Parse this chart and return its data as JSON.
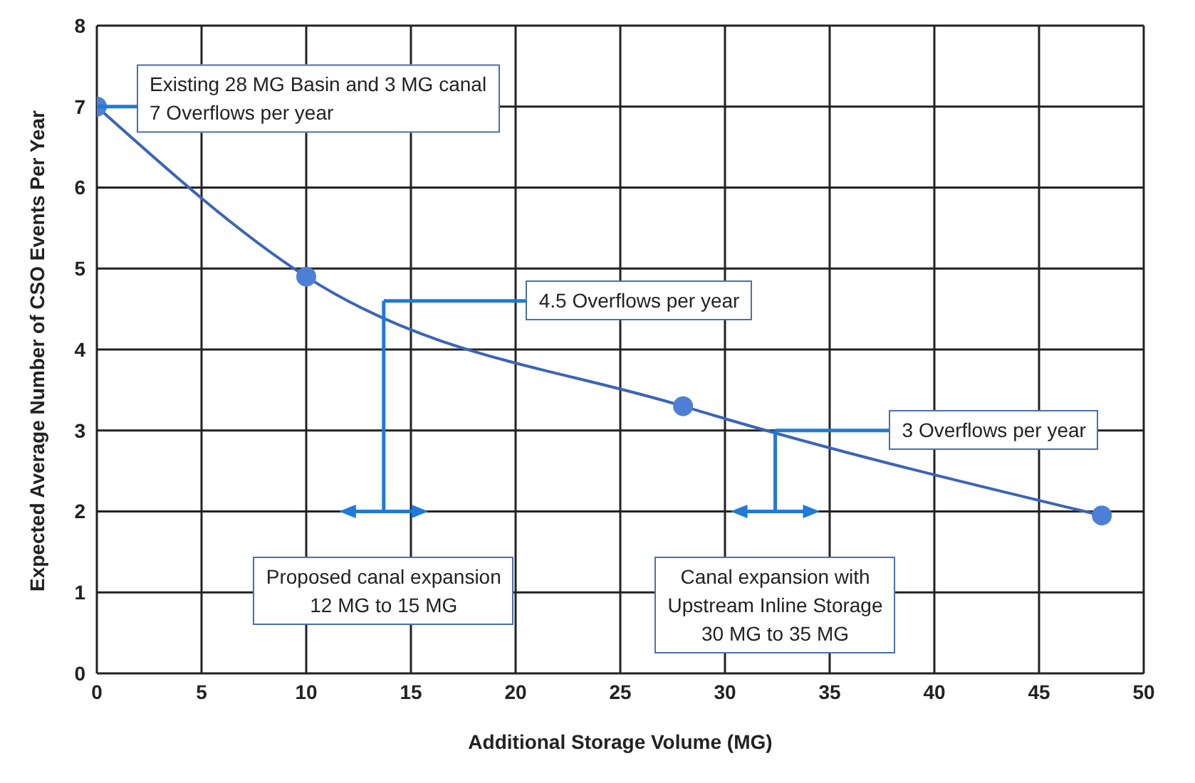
{
  "chart_data": {
    "type": "line",
    "xlabel": "Additional Storage Volume (MG)",
    "ylabel": "Expected Average Number of CSO Events Per Year",
    "x": [
      0,
      10,
      28,
      48
    ],
    "series": [
      {
        "color": "#3b64b8",
        "values": [
          7,
          4.9,
          3.3,
          1.95
        ]
      }
    ],
    "xlim": [
      0,
      50
    ],
    "xticks": [
      0,
      5,
      10,
      15,
      20,
      25,
      30,
      35,
      40,
      45,
      50
    ],
    "ylim": [
      0,
      8
    ],
    "yticks": [
      0,
      1,
      2,
      3,
      4,
      5,
      6,
      7,
      8
    ],
    "grid": true,
    "legend": false,
    "marker": "circle",
    "line_style": "solid",
    "annotations": [
      {
        "text": "Existing 28 MG Basin and 3 MG canal\n7 Overflows per year",
        "x": 0,
        "y": 7
      },
      "4.5 Overflows per year",
      {
        "text": "3 Overflows per year",
        "x": 32.4,
        "y": 3
      },
      "Proposed canal expansion\n12 MG to 15 MG",
      "Canal expansion with\nUpstream Inline Storage\n30 MG to 35 MG"
    ]
  }
}
